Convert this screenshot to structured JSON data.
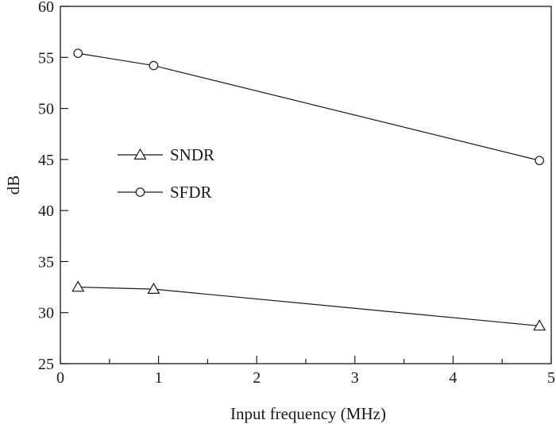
{
  "chart_data": {
    "type": "line",
    "xlabel": "Input frequency (MHz)",
    "ylabel": "dB",
    "xlim": [
      0,
      5
    ],
    "ylim": [
      25,
      60
    ],
    "xticks": [
      0,
      1,
      2,
      3,
      4,
      5
    ],
    "yticks": [
      25,
      30,
      35,
      40,
      45,
      50,
      55,
      60
    ],
    "xtick_labels": [
      "0",
      "1",
      "2",
      "3",
      "4",
      "5"
    ],
    "ytick_labels": [
      "25",
      "30",
      "35",
      "40",
      "45",
      "50",
      "55",
      "60"
    ],
    "grid": false,
    "legend_position": "center-left",
    "series": [
      {
        "name": "SNDR",
        "marker": "triangle",
        "x": [
          0.18,
          0.95,
          4.88
        ],
        "y": [
          32.5,
          32.3,
          28.7
        ]
      },
      {
        "name": "SFDR",
        "marker": "circle",
        "x": [
          0.18,
          0.95,
          4.88
        ],
        "y": [
          55.4,
          54.2,
          44.9
        ]
      }
    ]
  }
}
